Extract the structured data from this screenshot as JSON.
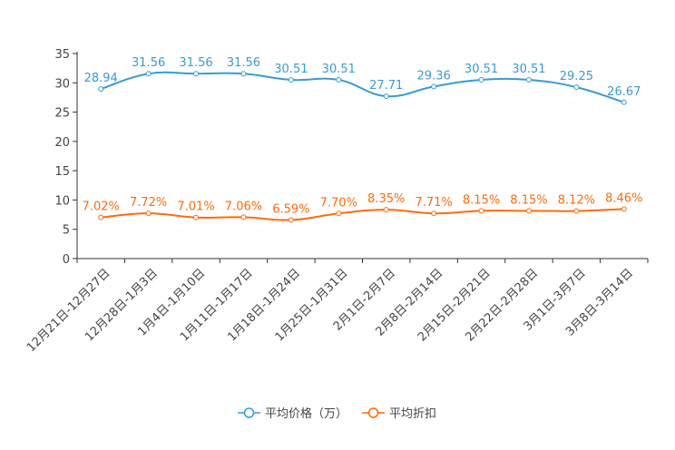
{
  "chart_data": {
    "type": "line",
    "title": "",
    "xlabel": "",
    "ylabel": "",
    "ylim": [
      0,
      35
    ],
    "yticks": [
      0,
      5,
      10,
      15,
      20,
      25,
      30,
      35
    ],
    "grid": false,
    "legend_position": "bottom-center",
    "categories": [
      "12月21日-12月27日",
      "12月28日-1月3日",
      "1月4日-1月10日",
      "1月11日-1月17日",
      "1月18日-1月24日",
      "1月25日-1月31日",
      "2月1日-2月7日",
      "2月8日-2月14日",
      "2月15日-2月21日",
      "2月22日-2月28日",
      "3月1日-3月7日",
      "3月8日-3月14日"
    ],
    "series": [
      {
        "name": "平均价格（万）",
        "color": "#3a9ad6",
        "values": [
          28.94,
          31.56,
          31.56,
          31.56,
          30.51,
          30.51,
          27.71,
          29.36,
          30.51,
          30.51,
          29.25,
          26.67
        ],
        "labels": [
          "28.94",
          "31.56",
          "31.56",
          "31.56",
          "30.51",
          "30.51",
          "27.71",
          "29.36",
          "30.51",
          "30.51",
          "29.25",
          "26.67"
        ]
      },
      {
        "name": "平均折扣",
        "color": "#ff6a0a",
        "values": [
          7.02,
          7.72,
          7.01,
          7.06,
          6.59,
          7.7,
          8.35,
          7.71,
          8.15,
          8.15,
          8.12,
          8.46
        ],
        "labels": [
          "7.02%",
          "7.72%",
          "7.01%",
          "7.06%",
          "6.59%",
          "7.70%",
          "8.35%",
          "7.71%",
          "8.15%",
          "8.15%",
          "8.12%",
          "8.46%"
        ]
      }
    ]
  }
}
